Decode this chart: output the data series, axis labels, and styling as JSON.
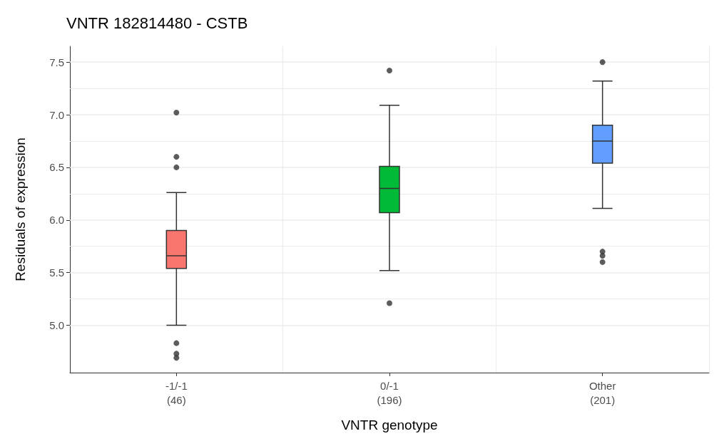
{
  "chart_data": {
    "type": "box",
    "title": "VNTR 182814480 - CSTB",
    "xlabel": "VNTR genotype",
    "ylabel": "Residuals of expression",
    "categories": [
      "-1/-1\n(46)",
      "0/-1\n(196)",
      "Other\n(201)"
    ],
    "colors": [
      "#f8766d",
      "#00ba38",
      "#619cff"
    ],
    "boxes": [
      {
        "low": 5.0,
        "q1": 5.54,
        "median": 5.66,
        "q3": 5.9,
        "high": 6.26,
        "outliers": [
          7.02,
          6.6,
          6.5,
          4.83,
          4.73,
          4.69
        ]
      },
      {
        "low": 5.52,
        "q1": 6.07,
        "median": 6.3,
        "q3": 6.51,
        "high": 7.09,
        "outliers": [
          7.42,
          5.21
        ]
      },
      {
        "low": 6.11,
        "q1": 6.54,
        "median": 6.75,
        "q3": 6.9,
        "high": 7.32,
        "outliers": [
          7.5,
          5.7,
          5.66,
          5.6
        ]
      }
    ],
    "ylim": [
      4.55,
      7.65
    ],
    "yticks": [
      {
        "value": 5,
        "label": "5.0"
      },
      {
        "value": 5.5,
        "label": "5.5"
      },
      {
        "value": 6,
        "label": "6.0"
      },
      {
        "value": 6.5,
        "label": "6.5"
      },
      {
        "value": 7,
        "label": "7.0"
      },
      {
        "value": 7.5,
        "label": "7.5"
      }
    ],
    "grid": true
  }
}
